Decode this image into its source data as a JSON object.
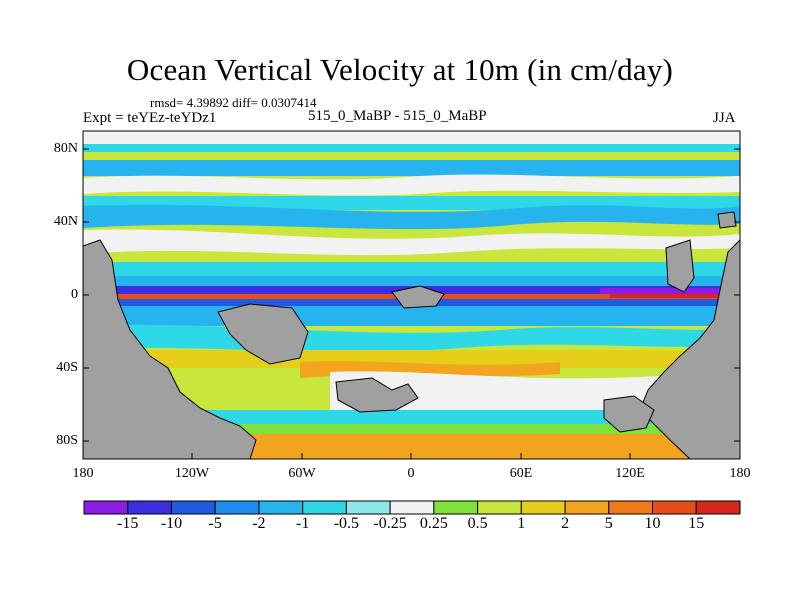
{
  "title": "Ocean Vertical Velocity at 10m (in cm/day)",
  "stats": "rmsd= 4.39892 diff= 0.0307414",
  "experiment": "Expt = teYEz-teYDz1",
  "center_label": "515_0_MaBP - 515_0_MaBP",
  "season": "JJA",
  "lat_ticks": [
    "80N",
    "40N",
    "0",
    "40S",
    "80S"
  ],
  "lon_ticks": [
    "180",
    "120W",
    "60W",
    "0",
    "60E",
    "120E",
    "180"
  ],
  "colorbar": {
    "labels": [
      "-15",
      "-10",
      "-5",
      "-2",
      "-1",
      "-0.5",
      "-0.25",
      "0.25",
      "0.5",
      "1",
      "2",
      "5",
      "10",
      "15"
    ],
    "colors": [
      "#8a1ee6",
      "#3b2ee0",
      "#1f5ae0",
      "#1e8cf0",
      "#27b4ee",
      "#2ed8e6",
      "#8ee8ea",
      "#f2f2f2",
      "#7ee23a",
      "#c8e63c",
      "#e6cf1a",
      "#f2a41e",
      "#ee7a18",
      "#e84c18",
      "#d8261a"
    ]
  },
  "colors": {
    "land": "#a0a0a0",
    "ocean_base": "#c8e63c",
    "coast": "#000000"
  }
}
